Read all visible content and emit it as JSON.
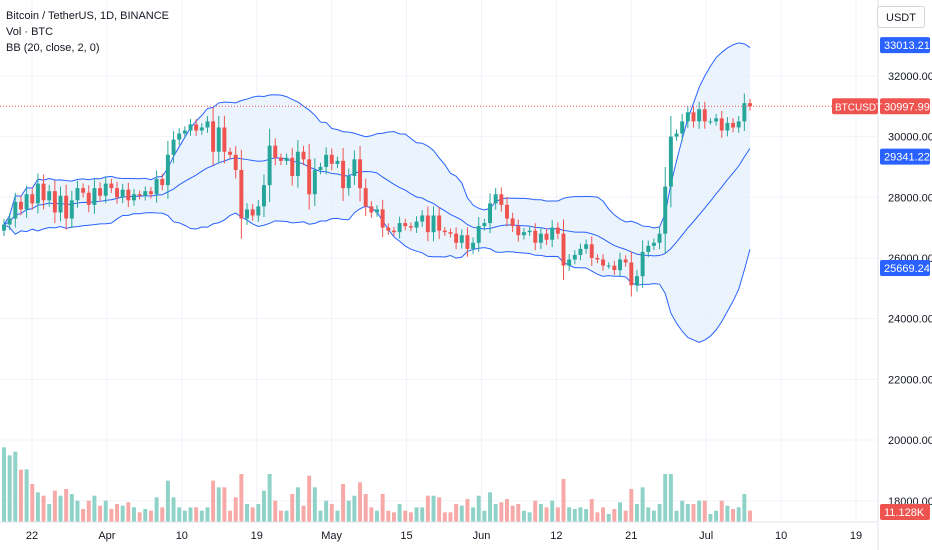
{
  "legend": {
    "symbol": "Bitcoin / TetherUS, 1D, BINANCE",
    "volume": "Vol · BTC",
    "bb": "BB (20, close, 2, 0)"
  },
  "currency_button": "USDT",
  "colors": {
    "up": "#26a69a",
    "down": "#ef5350",
    "vol_up": "#8fd3c8",
    "vol_down": "#f7a9a7",
    "bb_line": "#2962ff",
    "bb_fill": "#e3effb",
    "last_price": "#ef5350"
  },
  "chart_data": {
    "type": "candlestick",
    "x_tick_labels": [
      "22",
      "Apr",
      "10",
      "19",
      "May",
      "15",
      "Jun",
      "12",
      "21",
      "Jul",
      "10",
      "19"
    ],
    "y_tick_labels": [
      "18000.00",
      "20000.00",
      "22000.00",
      "24000.00",
      "26000.00",
      "28000.00",
      "30000.00",
      "32000.00"
    ],
    "ylim": [
      17300,
      34500
    ],
    "price_labels": [
      {
        "value": 33013.21,
        "text": "33013.21",
        "kind": "bb_upper"
      },
      {
        "value": 29341.22,
        "text": "29341.22",
        "kind": "bb_middle"
      },
      {
        "value": 25669.24,
        "text": "25669.24",
        "kind": "bb_lower"
      }
    ],
    "last_price": {
      "value": 30997.99,
      "text": "30997.99",
      "symbol": "BTCUSDT"
    },
    "last_volume": "11.128K",
    "closes": [
      27100,
      27300,
      27850,
      27600,
      28100,
      27800,
      28450,
      27900,
      28200,
      27500,
      28050,
      27300,
      27900,
      28300,
      28150,
      27750,
      28300,
      28050,
      28450,
      28300,
      28000,
      28250,
      27900,
      28100,
      28050,
      28200,
      28100,
      28600,
      28400,
      29400,
      29900,
      30100,
      30200,
      30400,
      30200,
      30300,
      30500,
      29500,
      30300,
      29500,
      29400,
      28900,
      27300,
      27600,
      27400,
      27700,
      28400,
      29700,
      29300,
      29200,
      29300,
      28700,
      29500,
      29250,
      28100,
      28900,
      29000,
      29400,
      29100,
      29200,
      28300,
      28700,
      29250,
      28300,
      27700,
      27500,
      27600,
      27000,
      26900,
      26850,
      27150,
      27050,
      27000,
      27200,
      27400,
      26850,
      27400,
      26900,
      26850,
      26800,
      26500,
      26750,
      26300,
      26500,
      27050,
      27150,
      27800,
      28100,
      27750,
      27300,
      27050,
      26750,
      26850,
      26900,
      26500,
      26800,
      26600,
      27000,
      26800,
      25750,
      25950,
      26100,
      26300,
      26450,
      26000,
      25950,
      25750,
      25750,
      25600,
      25950,
      25850,
      25100,
      25400,
      26200,
      26400,
      26500,
      26800,
      28350,
      30000,
      30100,
      30500,
      30800,
      30500,
      30900,
      30500,
      30500,
      30600,
      30200,
      30450,
      30300,
      30500,
      31100,
      30998
    ]
  }
}
